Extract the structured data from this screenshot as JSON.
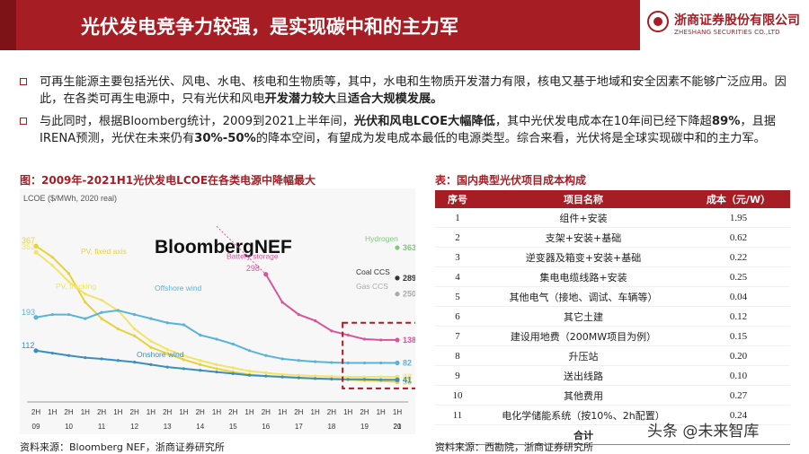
{
  "header": {
    "title": "光伏发电竞争力较强，是实现碳中和的主力军",
    "logo_cn": "浙商证券股份有限公司",
    "logo_en": "ZHESHANG SECURITIES CO.,LTD"
  },
  "bullets": [
    {
      "parts": [
        {
          "t": "可再生能源主要包括光伏、风电、水电、核电和生物质等，其中，水电和生物质开发潜力有限，核电又基于地域和安全因素不能够广泛应用。因此，在各类可再生电源中，只有光伏和风电",
          "b": false
        },
        {
          "t": "开发潜力较大",
          "b": true
        },
        {
          "t": "且",
          "b": false
        },
        {
          "t": "适合大规模发展。",
          "b": true
        }
      ]
    },
    {
      "parts": [
        {
          "t": "与此同时，根据Bloomberg统计，2009到2021上半年间，",
          "b": false
        },
        {
          "t": "光伏和风电LCOE大幅降低",
          "b": true
        },
        {
          "t": "，其中光伏发电成本在10年间已经下降超",
          "b": false
        },
        {
          "t": "89%",
          "b": true
        },
        {
          "t": "，且据IRENA预测，光伏在未来仍有",
          "b": false
        },
        {
          "t": "30%-50%",
          "b": true
        },
        {
          "t": "的降本空间，有望成为发电成本最低的电源类型。综合来看，光伏将是全球实现碳中和的主力军。",
          "b": false
        }
      ]
    }
  ],
  "left_panel": {
    "caption": "图：2009年-2021H1光伏发电LCOE在各类电源中降幅最大",
    "source": "资料来源：Bloomberg NEF，浙商证券研究所"
  },
  "right_panel": {
    "caption": "表：国内典型光伏项目成本构成",
    "source": "资料来源：西勘院，浙商证券研究所",
    "columns": [
      "序号",
      "项目名称",
      "成本（元/W）"
    ],
    "rows": [
      [
        "1",
        "组件+安装",
        "1.95"
      ],
      [
        "2",
        "支架+安装+基础",
        "0.62"
      ],
      [
        "3",
        "逆变器及箱变+安装+基础",
        "0.22"
      ],
      [
        "4",
        "集电电缆线路+安装",
        "0.25"
      ],
      [
        "5",
        "其他电气（接地、调试、车辆等）",
        "0.04"
      ],
      [
        "6",
        "其它土建",
        "0.12"
      ],
      [
        "7",
        "建设用地费（200MW项目为例）",
        "0.15"
      ],
      [
        "8",
        "升压站",
        "0.20"
      ],
      [
        "9",
        "送出线路",
        "0.10"
      ],
      [
        "10",
        "其他费用",
        "0.27"
      ],
      [
        "11",
        "电化学储能系统（按10%、2h配置）",
        "0.24"
      ]
    ],
    "total_label": "合计"
  },
  "watermark": "头条 @未来智库",
  "colors": {
    "brand_red": "#a61d24",
    "pv_fixed": "#e8d23a",
    "pv_tracking": "#f0e46a",
    "offshore_wind": "#5ab3d9",
    "onshore_wind": "#3a8fbf",
    "battery": "#d9559a",
    "hydrogen": "#7fc97f",
    "coal_ccs": "#333333",
    "gas_ccs": "#aaaaaa"
  },
  "chart_data": {
    "type": "line",
    "brand": "BloombergNEF",
    "ylabel": "LCOE ($/MWh, 2020 real)",
    "ylim": [
      0,
      420
    ],
    "x_half": [
      "2H",
      "1H",
      "2H",
      "1H",
      "2H",
      "1H",
      "2H",
      "1H",
      "2H",
      "1H",
      "2H",
      "1H",
      "2H",
      "1H",
      "2H",
      "1H",
      "2H",
      "1H",
      "2H",
      "1H",
      "2H",
      "1H",
      "1H"
    ],
    "x_year": [
      "09",
      "10",
      "11",
      "12",
      "13",
      "14",
      "15",
      "16",
      "17",
      "18",
      "19",
      "20",
      "21"
    ],
    "series": [
      {
        "name": "PV, fixed axis",
        "color_key": "pv_fixed",
        "values": [
          367,
          340,
          300,
          230,
          190,
          165,
          148,
          120,
          105,
          90,
          78,
          68,
          60,
          54,
          50,
          47,
          45,
          44,
          42,
          41,
          39,
          38,
          36
        ],
        "end_label": "36"
      },
      {
        "name": "PV, tracking",
        "color_key": "pv_tracking",
        "values": [
          352,
          320,
          280,
          250,
          235,
          210,
          165,
          135,
          115,
          100,
          88,
          78,
          70,
          62,
          58,
          54,
          52,
          50,
          49,
          48,
          48,
          48,
          48
        ],
        "end_label": "48"
      },
      {
        "name": "Offshore wind",
        "color_key": "offshore_wind",
        "values": [
          193,
          200,
          200,
          190,
          205,
          210,
          200,
          190,
          180,
          175,
          150,
          140,
          128,
          112,
          100,
          92,
          88,
          85,
          83,
          82,
          82,
          82,
          82
        ],
        "end_label": "82"
      },
      {
        "name": "Onshore wind",
        "color_key": "onshore_wind",
        "values": [
          112,
          106,
          100,
          95,
          92,
          88,
          84,
          78,
          72,
          68,
          64,
          60,
          56,
          52,
          50,
          48,
          46,
          44,
          43,
          42,
          42,
          41,
          41
        ],
        "end_label": "41"
      },
      {
        "name": "Battery storage",
        "color_key": "battery",
        "start_index": 14,
        "values": [
          298,
          230,
          200,
          185,
          160,
          150,
          140,
          138,
          138
        ],
        "end_label": "138"
      },
      {
        "name": "Hydrogen",
        "color_key": "hydrogen",
        "start_index": 22,
        "values": [
          363
        ],
        "end_label": "363"
      },
      {
        "name": "Coal CCS",
        "color_key": "coal_ccs",
        "start_index": 22,
        "values": [
          289
        ],
        "end_label": "289"
      },
      {
        "name": "Gas CCS",
        "color_key": "gas_ccs",
        "start_index": 22,
        "values": [
          250
        ],
        "end_label": "250"
      }
    ],
    "start_labels": [
      {
        "series": "PV, fixed axis",
        "text": "367"
      },
      {
        "series": "PV, tracking",
        "text": "352"
      },
      {
        "series": "Offshore wind",
        "text": "193"
      },
      {
        "series": "Onshore wind",
        "text": "112"
      }
    ],
    "highlight": "dashed box around 2020–2021H1"
  }
}
